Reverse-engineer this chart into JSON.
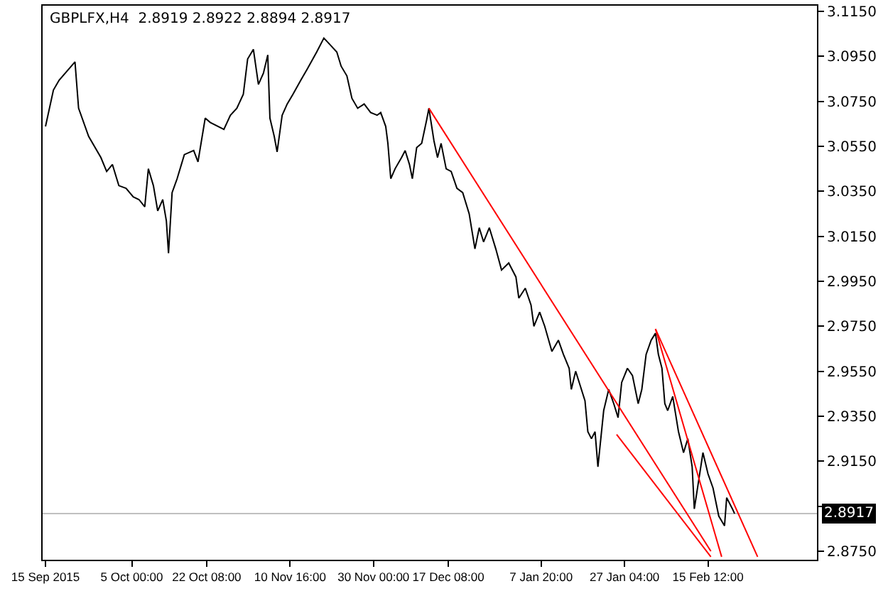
{
  "chart_data": {
    "type": "line",
    "title": "GBPLFX,H4  2.8919 2.8922 2.8894 2.8917",
    "xlim": [
      "2015-09-14T08:00",
      "2016-03-11T18:00"
    ],
    "xticks": [
      {
        "value": "2015-09-15",
        "label": "15 Sep 2015"
      },
      {
        "value": "2015-10-05",
        "label": "5 Oct 00:00"
      },
      {
        "value": "2015-10-22T08:00",
        "label": "22 Oct 08:00"
      },
      {
        "value": "2015-11-10T16:00",
        "label": "10 Nov 16:00"
      },
      {
        "value": "2015-11-30",
        "label": "30 Nov 00:00"
      },
      {
        "value": "2015-12-17T08:00",
        "label": "17 Dec 08:00"
      },
      {
        "value": "2016-01-07T20:00",
        "label": "7 Jan 20:00"
      },
      {
        "value": "2016-01-27T04:00",
        "label": "27 Jan 04:00"
      },
      {
        "value": "2016-02-15T12:00",
        "label": "15 Feb 12:00"
      }
    ],
    "ylim": [
      2.8712,
      3.1175
    ],
    "yticks": [
      {
        "value": 3.115,
        "label": "3.1150"
      },
      {
        "value": 3.095,
        "label": "3.0950"
      },
      {
        "value": 3.075,
        "label": "3.0750"
      },
      {
        "value": 3.055,
        "label": "3.0550"
      },
      {
        "value": 3.035,
        "label": "3.0350"
      },
      {
        "value": 3.015,
        "label": "3.0150"
      },
      {
        "value": 2.995,
        "label": "2.9950"
      },
      {
        "value": 2.975,
        "label": "2.9750"
      },
      {
        "value": 2.955,
        "label": "2.9550"
      },
      {
        "value": 2.935,
        "label": "2.9350"
      },
      {
        "value": 2.915,
        "label": "2.9150"
      },
      {
        "value": 2.895,
        "label": null
      },
      {
        "value": 2.875,
        "label": "2.8750"
      }
    ],
    "grid": false,
    "marker": "none",
    "line_style": "solid",
    "ref_lines": [
      {
        "axis": "y",
        "value": 2.8917,
        "label": "2.8917",
        "color": "#c0c0c0"
      }
    ],
    "series": [
      {
        "color": "#000000",
        "x": [
          "2015-09-15T00:00",
          "2015-09-16T20:00",
          "2015-09-18T04:00",
          "2015-09-21T20:00",
          "2015-09-22T16:00",
          "2015-09-25T00:00",
          "2015-09-27T20:00",
          "2015-09-29T04:00",
          "2015-09-30T12:00",
          "2015-10-02T00:00",
          "2015-10-03T16:00",
          "2015-10-05T08:00",
          "2015-10-06T16:00",
          "2015-10-08T00:00",
          "2015-10-08T20:00",
          "2015-10-10T00:00",
          "2015-10-11T00:00",
          "2015-10-12T04:00",
          "2015-10-13T00:00",
          "2015-10-13T12:00",
          "2015-10-14T08:00",
          "2015-10-15T12:00",
          "2015-10-17T04:00",
          "2015-10-19T08:00",
          "2015-10-20T08:00",
          "2015-10-22T00:00",
          "2015-10-23T04:00",
          "2015-10-26T08:00",
          "2015-10-27T20:00",
          "2015-10-29T08:00",
          "2015-10-30T20:00",
          "2015-10-31T20:00",
          "2015-11-02T04:00",
          "2015-11-03T08:00",
          "2015-11-04T12:00",
          "2015-11-05T12:00",
          "2015-11-06T00:00",
          "2015-11-07T00:00",
          "2015-11-07T16:00",
          "2015-11-08T20:00",
          "2015-11-10T00:00",
          "2015-11-11T08:00",
          "2015-11-13T04:00",
          "2015-11-14T16:00",
          "2015-11-16T20:00",
          "2015-11-18T12:00",
          "2015-11-20T00:00",
          "2015-11-21T12:00",
          "2015-11-22T12:00",
          "2015-11-23T20:00",
          "2015-11-25T00:00",
          "2015-11-26T08:00",
          "2015-11-27T20:00",
          "2015-11-29T08:00",
          "2015-11-30T20:00",
          "2015-12-01T16:00",
          "2015-12-02T20:00",
          "2015-12-03T08:00",
          "2015-12-04T00:00",
          "2015-12-05T00:00",
          "2015-12-06T12:00",
          "2015-12-07T08:00",
          "2015-12-08T08:00",
          "2015-12-09T00:00",
          "2015-12-10T00:00",
          "2015-12-11T04:00",
          "2015-12-12T08:00",
          "2015-12-12T20:00",
          "2015-12-14T00:00",
          "2015-12-14T20:00",
          "2015-12-15T16:00",
          "2015-12-16T20:00",
          "2015-12-18T00:00",
          "2015-12-19T08:00",
          "2015-12-20T16:00",
          "2015-12-22T04:00",
          "2015-12-23T12:00",
          "2015-12-24T12:00",
          "2015-12-25T12:00",
          "2015-12-26T20:00",
          "2015-12-28T08:00",
          "2015-12-29T16:00",
          "2015-12-31T08:00",
          "2016-01-02T00:00",
          "2016-01-02T16:00",
          "2016-01-04T04:00",
          "2016-01-05T12:00",
          "2016-01-06T04:00",
          "2016-01-07T12:00",
          "2016-01-08T16:00",
          "2016-01-10T08:00",
          "2016-01-11T20:00",
          "2016-01-13T00:00",
          "2016-01-14T08:00",
          "2016-01-14T20:00",
          "2016-01-15T20:00",
          "2016-01-16T16:00",
          "2016-01-18T00:00",
          "2016-01-18T16:00",
          "2016-01-19T12:00",
          "2016-01-20T08:00",
          "2016-01-21T00:00",
          "2016-01-22T08:00",
          "2016-01-23T12:00",
          "2016-01-24T16:00",
          "2016-01-25T16:00",
          "2016-01-26T12:00",
          "2016-01-27T20:00",
          "2016-01-29T00:00",
          "2016-01-30T08:00",
          "2016-01-31T04:00",
          "2016-02-01T04:00",
          "2016-02-02T08:00",
          "2016-02-03T08:00",
          "2016-02-04T00:00",
          "2016-02-04T20:00",
          "2016-02-05T12:00",
          "2016-02-06T04:00",
          "2016-02-07T08:00",
          "2016-02-08T16:00",
          "2016-02-09T20:00",
          "2016-02-10T20:00",
          "2016-02-11T20:00",
          "2016-02-12T08:00",
          "2016-02-13T08:00",
          "2016-02-14T08:00",
          "2016-02-15T12:00",
          "2016-02-16T16:00",
          "2016-02-18T00:00",
          "2016-02-19T08:00",
          "2016-02-19T20:00",
          "2016-02-21T04:00",
          "2016-02-21T16:00"
        ],
        "values": [
          3.0638,
          3.08,
          3.0844,
          3.0925,
          3.0719,
          3.0594,
          3.05,
          3.0438,
          3.0469,
          3.0375,
          3.0363,
          3.0325,
          3.0313,
          3.0281,
          3.045,
          3.0375,
          3.0263,
          3.0313,
          3.0219,
          3.0075,
          3.0344,
          3.0406,
          3.0513,
          3.0531,
          3.0481,
          3.0675,
          3.0656,
          3.0625,
          3.0688,
          3.0719,
          3.0781,
          3.0938,
          3.0981,
          3.0825,
          3.0875,
          3.0956,
          3.0675,
          3.0594,
          3.0525,
          3.0688,
          3.0738,
          3.0781,
          3.0844,
          3.0894,
          3.0969,
          3.1031,
          3.1,
          3.0969,
          3.0906,
          3.0863,
          3.0763,
          3.0719,
          3.0738,
          3.07,
          3.0688,
          3.07,
          3.0638,
          3.0563,
          3.0406,
          3.045,
          3.05,
          3.0531,
          3.0469,
          3.0406,
          3.0544,
          3.0563,
          3.0669,
          3.0719,
          3.0575,
          3.05,
          3.0563,
          3.045,
          3.0438,
          3.0363,
          3.0344,
          3.025,
          3.0094,
          3.0188,
          3.0125,
          3.0188,
          3.0094,
          3.0,
          3.0031,
          2.9969,
          2.9875,
          2.9919,
          2.9844,
          2.975,
          2.9813,
          2.975,
          2.9638,
          2.9688,
          2.9625,
          2.9563,
          2.9469,
          2.955,
          2.95,
          2.9419,
          2.9281,
          2.925,
          2.9281,
          2.9125,
          2.9375,
          2.9469,
          2.9406,
          2.9344,
          2.95,
          2.9563,
          2.9531,
          2.9406,
          2.9469,
          2.9625,
          2.9688,
          2.9719,
          2.9625,
          2.9563,
          2.9406,
          2.9375,
          2.9438,
          2.9281,
          2.9188,
          2.925,
          2.9125,
          2.8938,
          2.9063,
          2.9188,
          2.9094,
          2.9031,
          2.8906,
          2.8863,
          2.8988,
          2.8938,
          2.8917
        ]
      },
      {
        "color": "#ff0000",
        "x": [
          "2015-12-12T20:00",
          "2016-02-16T04:00"
        ],
        "values": [
          3.0719,
          2.875
        ]
      },
      {
        "color": "#ff0000",
        "x": [
          "2016-01-25T08:00",
          "2016-02-16T04:00"
        ],
        "values": [
          2.9269,
          2.8725
        ]
      },
      {
        "color": "#ff0000",
        "x": [
          "2016-02-03T08:00",
          "2016-02-18T16:00"
        ],
        "values": [
          2.9738,
          2.8725
        ]
      },
      {
        "color": "#ff0000",
        "x": [
          "2016-02-03T08:00",
          "2016-02-27T00:00"
        ],
        "values": [
          2.9738,
          2.8725
        ]
      }
    ]
  }
}
